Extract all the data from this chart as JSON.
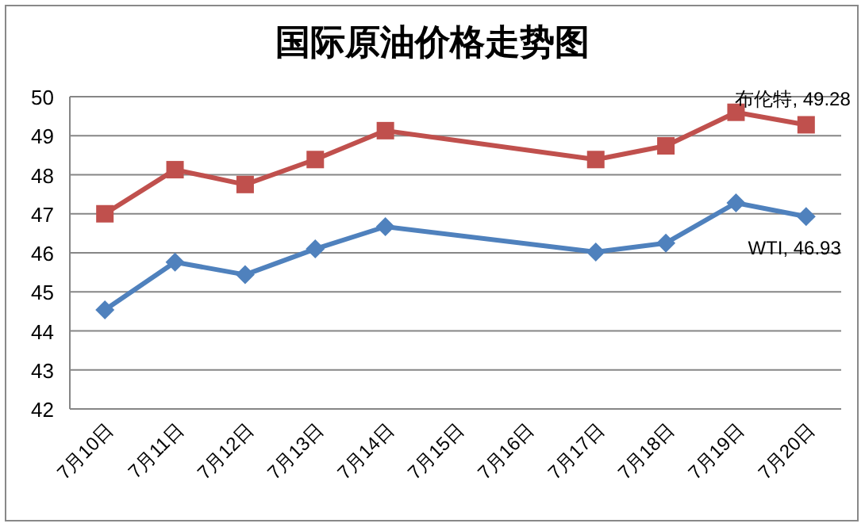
{
  "chart_data": {
    "type": "line",
    "title": "国际原油价格走势图",
    "categories": [
      "7月10日",
      "7月11日",
      "7月12日",
      "7月13日",
      "7月14日",
      "7月15日",
      "7月16日",
      "7月17日",
      "7月18日",
      "7月19日",
      "7月20日"
    ],
    "series": [
      {
        "name": "布伦特",
        "color": "#c0504d",
        "marker": "square",
        "values": [
          47.0,
          48.13,
          47.75,
          48.39,
          49.13,
          null,
          null,
          48.39,
          48.74,
          49.6,
          49.28
        ],
        "value_labels": [
          null,
          null,
          null,
          null,
          null,
          null,
          null,
          null,
          null,
          null,
          ", 49.28"
        ]
      },
      {
        "name": "WTI",
        "color": "#4f81bd",
        "marker": "diamond",
        "values": [
          44.54,
          45.76,
          45.44,
          46.1,
          46.67,
          null,
          null,
          46.02,
          46.25,
          47.28,
          46.93
        ],
        "value_labels": [
          null,
          null,
          null,
          null,
          null,
          null,
          null,
          null,
          null,
          null,
          ", 46.93"
        ]
      }
    ],
    "ylim": [
      42,
      50
    ],
    "yticks": [
      42,
      43,
      44,
      45,
      46,
      47,
      48,
      49,
      50
    ],
    "grid": "y",
    "legend": false
  }
}
